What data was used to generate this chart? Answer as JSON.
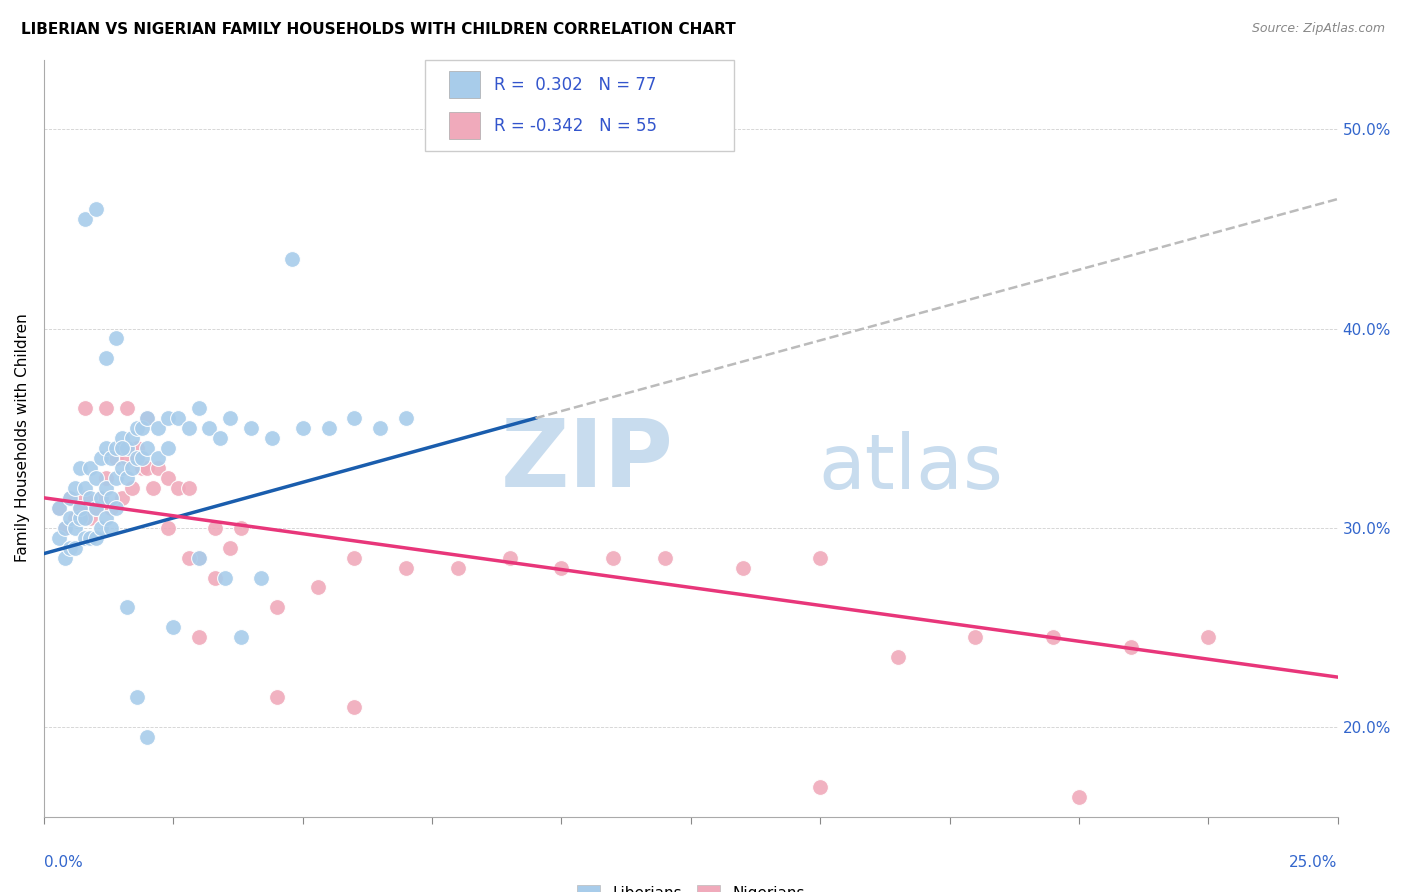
{
  "title": "LIBERIAN VS NIGERIAN FAMILY HOUSEHOLDS WITH CHILDREN CORRELATION CHART",
  "source": "Source: ZipAtlas.com",
  "ylabel": "Family Households with Children",
  "y_ticks": [
    0.2,
    0.3,
    0.4,
    0.5
  ],
  "xmin": 0.0,
  "xmax": 0.25,
  "ymin": 0.155,
  "ymax": 0.535,
  "R_blue": 0.302,
  "N_blue": 77,
  "R_pink": -0.342,
  "N_pink": 55,
  "blue_color": "#A8CCEA",
  "pink_color": "#F0AABB",
  "blue_line_color": "#1A5DAD",
  "pink_line_color": "#E8367A",
  "dashed_line_color": "#BBBBBB",
  "blue_scatter_x": [
    0.003,
    0.003,
    0.004,
    0.004,
    0.005,
    0.005,
    0.005,
    0.006,
    0.006,
    0.006,
    0.007,
    0.007,
    0.007,
    0.008,
    0.008,
    0.008,
    0.009,
    0.009,
    0.009,
    0.01,
    0.01,
    0.01,
    0.011,
    0.011,
    0.011,
    0.012,
    0.012,
    0.012,
    0.013,
    0.013,
    0.013,
    0.014,
    0.014,
    0.014,
    0.015,
    0.015,
    0.016,
    0.016,
    0.017,
    0.017,
    0.018,
    0.018,
    0.019,
    0.019,
    0.02,
    0.02,
    0.022,
    0.022,
    0.024,
    0.024,
    0.026,
    0.028,
    0.03,
    0.032,
    0.034,
    0.036,
    0.04,
    0.044,
    0.05,
    0.055,
    0.06,
    0.065,
    0.07,
    0.008,
    0.01,
    0.012,
    0.014,
    0.015,
    0.016,
    0.018,
    0.02,
    0.025,
    0.03,
    0.035,
    0.038,
    0.042,
    0.048
  ],
  "blue_scatter_y": [
    0.31,
    0.295,
    0.3,
    0.285,
    0.305,
    0.29,
    0.315,
    0.3,
    0.32,
    0.29,
    0.305,
    0.33,
    0.31,
    0.295,
    0.32,
    0.305,
    0.315,
    0.295,
    0.33,
    0.31,
    0.325,
    0.295,
    0.335,
    0.315,
    0.3,
    0.34,
    0.32,
    0.305,
    0.335,
    0.315,
    0.3,
    0.34,
    0.325,
    0.31,
    0.345,
    0.33,
    0.34,
    0.325,
    0.345,
    0.33,
    0.35,
    0.335,
    0.35,
    0.335,
    0.355,
    0.34,
    0.35,
    0.335,
    0.355,
    0.34,
    0.355,
    0.35,
    0.36,
    0.35,
    0.345,
    0.355,
    0.35,
    0.345,
    0.35,
    0.35,
    0.355,
    0.35,
    0.355,
    0.455,
    0.46,
    0.385,
    0.395,
    0.34,
    0.26,
    0.215,
    0.195,
    0.25,
    0.285,
    0.275,
    0.245,
    0.275,
    0.435
  ],
  "pink_scatter_x": [
    0.003,
    0.004,
    0.005,
    0.006,
    0.007,
    0.008,
    0.009,
    0.01,
    0.011,
    0.012,
    0.013,
    0.014,
    0.015,
    0.016,
    0.017,
    0.018,
    0.019,
    0.02,
    0.021,
    0.022,
    0.024,
    0.026,
    0.028,
    0.03,
    0.033,
    0.036,
    0.008,
    0.012,
    0.016,
    0.02,
    0.024,
    0.028,
    0.033,
    0.038,
    0.045,
    0.053,
    0.06,
    0.07,
    0.08,
    0.09,
    0.1,
    0.11,
    0.12,
    0.135,
    0.15,
    0.165,
    0.18,
    0.195,
    0.21,
    0.225,
    0.03,
    0.045,
    0.06,
    0.15,
    0.2
  ],
  "pink_scatter_y": [
    0.31,
    0.3,
    0.315,
    0.305,
    0.31,
    0.315,
    0.305,
    0.31,
    0.315,
    0.325,
    0.31,
    0.335,
    0.315,
    0.335,
    0.32,
    0.34,
    0.33,
    0.33,
    0.32,
    0.33,
    0.325,
    0.32,
    0.32,
    0.285,
    0.3,
    0.29,
    0.36,
    0.36,
    0.36,
    0.355,
    0.3,
    0.285,
    0.275,
    0.3,
    0.26,
    0.27,
    0.285,
    0.28,
    0.28,
    0.285,
    0.28,
    0.285,
    0.285,
    0.28,
    0.285,
    0.235,
    0.245,
    0.245,
    0.24,
    0.245,
    0.245,
    0.215,
    0.21,
    0.17,
    0.165
  ],
  "blue_trendline_x": [
    0.0,
    0.095
  ],
  "blue_trendline_y": [
    0.287,
    0.355
  ],
  "dashed_line_x": [
    0.095,
    0.25
  ],
  "dashed_line_y": [
    0.355,
    0.465
  ],
  "pink_trendline_x": [
    0.0,
    0.25
  ],
  "pink_trendline_y": [
    0.315,
    0.225
  ]
}
